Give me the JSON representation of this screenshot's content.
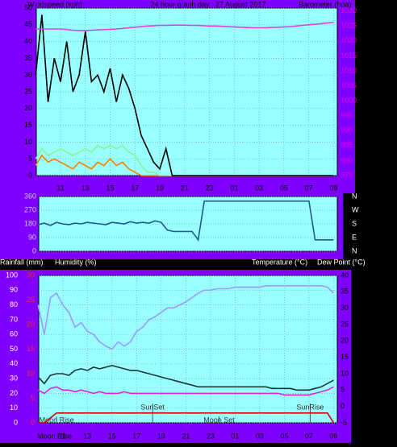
{
  "chart_data": [
    {
      "type": "line",
      "title": "24 hour graph day : 27 August 2017",
      "y_label": "Windspeed (kph)",
      "y2_label": "Barometer (hpa)",
      "x": [
        9,
        9.5,
        10,
        10.5,
        11,
        11.5,
        12,
        12.5,
        13,
        13.5,
        14,
        14.5,
        15,
        15.5,
        16,
        16.5,
        17,
        17.5,
        18,
        18.5,
        19,
        19.5,
        20,
        20.5,
        21,
        21.5,
        22,
        22.5,
        23,
        23.5,
        24,
        24.5,
        25,
        25.5,
        26,
        26.5,
        27,
        27.5,
        28,
        28.5,
        29,
        29.5,
        30,
        30.5,
        31,
        31.5,
        32,
        32.5,
        33
      ],
      "xlim": [
        9.05,
        33.3
      ],
      "xticks": [
        11,
        13,
        15,
        17,
        19,
        21,
        23,
        {
          "value": 25,
          "label": "01"
        },
        {
          "value": 27,
          "label": "03"
        },
        {
          "value": 29,
          "label": "05"
        },
        {
          "value": 31,
          "label": "07"
        },
        {
          "value": 33,
          "label": "09"
        }
      ],
      "ylim": [
        0,
        50
      ],
      "yticks": [
        0,
        5,
        10,
        15,
        20,
        25,
        30,
        35,
        40,
        45,
        50
      ],
      "y2lim": [
        975,
        1031
      ],
      "y2ticks": [
        975,
        980,
        985,
        990,
        995,
        1000,
        1005,
        1010,
        1015,
        1020,
        1025,
        1030
      ],
      "grid": true,
      "series": [
        {
          "color": "#ff8000",
          "values": [
            3,
            6,
            4,
            5,
            4,
            3,
            2,
            4,
            3,
            2,
            4,
            3,
            5,
            3,
            4,
            2,
            1,
            0,
            0,
            0,
            0,
            0,
            0,
            0,
            0,
            0,
            0,
            0,
            0,
            0,
            0,
            0,
            0,
            0,
            0,
            0,
            0,
            0,
            0,
            0,
            0,
            0,
            0,
            0,
            0,
            0,
            0,
            0,
            0
          ]
        },
        {
          "color": "#90ee90",
          "values": [
            5,
            8,
            6,
            7,
            8,
            7,
            6,
            7,
            8,
            7,
            9,
            8,
            9,
            8,
            9,
            7,
            6,
            3,
            1,
            1,
            0,
            0,
            0,
            0,
            0,
            0,
            0,
            0,
            0,
            0,
            0,
            0,
            0,
            0,
            0,
            0,
            0,
            0,
            0,
            0,
            0,
            0,
            0,
            0,
            0,
            0,
            0,
            0,
            0
          ]
        },
        {
          "color": "#000000",
          "values": [
            30,
            48,
            22,
            35,
            28,
            40,
            25,
            30,
            43,
            28,
            30,
            25,
            32,
            22,
            30,
            26,
            20,
            12,
            8,
            4,
            2,
            8,
            0,
            0,
            0,
            0,
            0,
            0,
            0,
            0,
            0,
            0,
            0,
            0,
            0,
            0,
            0,
            0,
            0,
            0,
            0,
            0,
            0,
            0,
            0,
            0,
            0,
            0,
            0
          ]
        },
        {
          "color": "#e040e0",
          "axis": "y2",
          "values": [
            1024,
            1024,
            1024,
            1024,
            1024,
            1023.8,
            1023.6,
            1023.5,
            1023.5,
            1023.6,
            1023.7,
            1023.8,
            1023.9,
            1024,
            1024.2,
            1024.4,
            1024.6,
            1024.8,
            1025,
            1025.1,
            1025.2,
            1025.2,
            1025.3,
            1025.3,
            1025.3,
            1025.2,
            1025.2,
            1025.1,
            1025,
            1025,
            1024.9,
            1024.8,
            1024.7,
            1024.6,
            1024.5,
            1024.4,
            1024.4,
            1024.4,
            1024.5,
            1024.6,
            1024.7,
            1024.8,
            1025,
            1025.2,
            1025.4,
            1025.6,
            1025.8,
            1026,
            1026.2
          ]
        }
      ]
    },
    {
      "type": "line",
      "x": [
        9,
        9.5,
        10,
        10.5,
        11,
        11.5,
        12,
        12.5,
        13,
        13.5,
        14,
        14.5,
        15,
        15.5,
        16,
        16.5,
        17,
        17.5,
        18,
        18.5,
        19,
        19.5,
        20,
        20.5,
        21,
        21.5,
        22,
        22.5,
        23,
        23.5,
        24,
        24.5,
        25,
        25.5,
        26,
        26.5,
        27,
        27.5,
        28,
        28.5,
        29,
        29.5,
        30,
        30.5,
        31,
        31.5,
        32,
        32.5,
        33
      ],
      "xlim": [
        9.05,
        33.3
      ],
      "ylim": [
        0,
        360
      ],
      "yticks": [
        0,
        90,
        180,
        270,
        360
      ],
      "y2lim": [
        0,
        360
      ],
      "y2ticks": [
        {
          "value": 360,
          "label": "N"
        },
        {
          "value": 270,
          "label": "W"
        },
        {
          "value": 180,
          "label": "S"
        },
        {
          "value": 90,
          "label": "E"
        },
        {
          "value": 0,
          "label": "N"
        }
      ],
      "grid": true,
      "series": [
        {
          "color": "#1f5a8a",
          "values": [
            175,
            185,
            170,
            190,
            180,
            175,
            185,
            180,
            190,
            185,
            180,
            175,
            190,
            185,
            180,
            195,
            185,
            190,
            185,
            200,
            190,
            140,
            130,
            130,
            130,
            130,
            75,
            330,
            330,
            330,
            330,
            330,
            330,
            330,
            330,
            330,
            330,
            330,
            330,
            330,
            330,
            330,
            330,
            330,
            330,
            75,
            75,
            75,
            75
          ]
        }
      ]
    },
    {
      "type": "line",
      "labels": [
        "Rainfall (mm)",
        "Humidity (%)",
        "Temperature (°C)",
        "Dew Point (°C)"
      ],
      "x": [
        9,
        9.5,
        10,
        10.5,
        11,
        11.5,
        12,
        12.5,
        13,
        13.5,
        14,
        14.5,
        15,
        15.5,
        16,
        16.5,
        17,
        17.5,
        18,
        18.5,
        19,
        19.5,
        20,
        20.5,
        21,
        21.5,
        22,
        22.5,
        23,
        23.5,
        24,
        24.5,
        25,
        25.5,
        26,
        26.5,
        27,
        27.5,
        28,
        28.5,
        29,
        29.5,
        30,
        30.5,
        31,
        31.5,
        32,
        32.5,
        33
      ],
      "xlim": [
        9.05,
        33.3
      ],
      "xticks": [
        11,
        13,
        15,
        17,
        19,
        21,
        23,
        {
          "value": 25,
          "label": "01"
        },
        {
          "value": 27,
          "label": "03"
        },
        {
          "value": 29,
          "label": "05"
        },
        {
          "value": 31,
          "label": "07"
        },
        {
          "value": 33,
          "label": "09"
        }
      ],
      "ylim": [
        0,
        100
      ],
      "yticks": [
        0,
        10,
        20,
        30,
        40,
        50,
        60,
        70,
        80,
        90,
        100
      ],
      "y3lim": [
        0,
        30
      ],
      "y3ticks": [
        0,
        5,
        10,
        15,
        20,
        25,
        30
      ],
      "y2lim": [
        -5,
        40
      ],
      "y2ticks": [
        -5,
        0,
        5,
        10,
        15,
        20,
        25,
        30,
        35,
        40
      ],
      "grid": true,
      "annotations": [
        {
          "text": "Moon Rise",
          "x": 10.5
        },
        {
          "text": "SunSet",
          "x": 18.3
        },
        {
          "text": "Moon Set",
          "x": 23.7
        },
        {
          "text": "SunRise",
          "x": 31.1
        }
      ],
      "bottom_label": "Moon Rise",
      "series": [
        {
          "color": "#9a9aff",
          "values": [
            80,
            60,
            85,
            88,
            80,
            75,
            65,
            68,
            62,
            60,
            55,
            52,
            50,
            55,
            52,
            55,
            62,
            65,
            70,
            72,
            75,
            78,
            78,
            80,
            82,
            85,
            88,
            90,
            90,
            91,
            91,
            91,
            92,
            92,
            92,
            92,
            92,
            93,
            93,
            93,
            93,
            93,
            93,
            93,
            93,
            93,
            93,
            92,
            88
          ]
        },
        {
          "color": "#e020e0",
          "axis": "y2",
          "values": [
            5,
            4,
            5.5,
            6,
            5,
            5,
            4.5,
            5,
            4.5,
            4,
            4.5,
            4,
            4,
            4,
            4.5,
            4,
            4,
            4,
            4,
            4,
            4,
            4,
            4,
            4,
            4,
            4,
            4,
            4,
            4,
            4,
            4,
            4,
            4,
            4,
            4,
            4,
            4,
            4,
            4,
            4,
            3.5,
            3.5,
            3.5,
            3.5,
            3.5,
            4,
            4.5,
            5,
            6
          ]
        },
        {
          "color": "#1a3535",
          "axis": "y2",
          "values": [
            9,
            7,
            9.5,
            10,
            10,
            9.5,
            11,
            11.5,
            11,
            12,
            11.5,
            12,
            12.5,
            12,
            11.5,
            11,
            11,
            10.5,
            10,
            9.5,
            9,
            8.5,
            8,
            7.5,
            7,
            6.5,
            6,
            6,
            6,
            6,
            6,
            6,
            6,
            6,
            6,
            6,
            6,
            6,
            5.5,
            5.5,
            5.5,
            5.5,
            5,
            5,
            5,
            5.5,
            6,
            7,
            8
          ]
        },
        {
          "color": "#cc0000",
          "axis": "y3",
          "values": [
            0,
            0,
            1,
            2,
            2,
            2,
            2,
            2,
            2,
            2,
            2,
            2,
            2,
            2,
            2,
            2,
            2,
            2,
            2,
            2,
            2,
            2,
            2,
            2,
            2,
            2,
            2,
            2,
            2,
            2,
            2,
            2,
            2,
            2,
            2,
            2,
            2,
            2,
            2,
            2,
            2,
            2,
            2,
            2,
            2,
            2,
            2,
            2,
            0
          ]
        }
      ]
    }
  ]
}
